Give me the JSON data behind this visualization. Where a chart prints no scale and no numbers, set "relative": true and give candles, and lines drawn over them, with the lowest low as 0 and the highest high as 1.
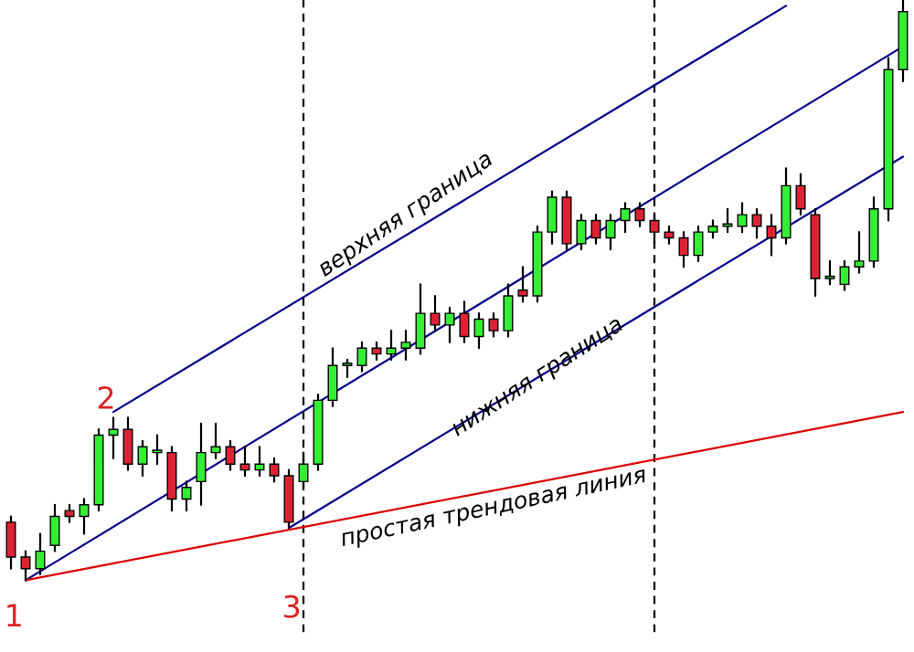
{
  "chart_data": {
    "type": "candlestick",
    "relative": true,
    "categories": [
      null,
      null,
      null,
      null,
      null,
      null,
      null,
      null,
      null,
      null,
      null,
      null,
      null,
      null,
      null,
      null,
      null,
      null,
      null,
      null,
      null,
      null,
      null,
      null,
      null,
      null,
      null,
      null,
      null,
      null,
      null,
      null,
      null,
      null,
      null,
      null,
      null,
      null,
      null,
      null,
      null,
      null,
      null,
      null,
      null,
      null,
      null,
      null,
      null,
      null,
      null,
      null,
      null,
      null,
      null,
      null,
      null,
      null,
      null,
      null,
      null,
      null
    ],
    "ohlc": [
      [
        0.1,
        0.11,
        0.02,
        0.04
      ],
      [
        0.04,
        0.05,
        0.0,
        0.02
      ],
      [
        0.02,
        0.08,
        0.01,
        0.05
      ],
      [
        0.06,
        0.13,
        0.05,
        0.11
      ],
      [
        0.12,
        0.13,
        0.1,
        0.11
      ],
      [
        0.11,
        0.14,
        0.08,
        0.13
      ],
      [
        0.13,
        0.26,
        0.12,
        0.25
      ],
      [
        0.25,
        0.28,
        0.21,
        0.26
      ],
      [
        0.26,
        0.28,
        0.19,
        0.2
      ],
      [
        0.2,
        0.24,
        0.18,
        0.23
      ],
      [
        0.22,
        0.25,
        0.2,
        0.22
      ],
      [
        0.22,
        0.23,
        0.12,
        0.14
      ],
      [
        0.14,
        0.17,
        0.12,
        0.16
      ],
      [
        0.17,
        0.27,
        0.13,
        0.22
      ],
      [
        0.22,
        0.27,
        0.21,
        0.23
      ],
      [
        0.23,
        0.24,
        0.19,
        0.2
      ],
      [
        0.2,
        0.23,
        0.18,
        0.19
      ],
      [
        0.19,
        0.23,
        0.18,
        0.2
      ],
      [
        0.2,
        0.21,
        0.17,
        0.18
      ],
      [
        0.18,
        0.19,
        0.09,
        0.1
      ],
      [
        0.17,
        0.22,
        0.16,
        0.2
      ],
      [
        0.2,
        0.32,
        0.19,
        0.31
      ],
      [
        0.31,
        0.4,
        0.3,
        0.37
      ],
      [
        0.37,
        0.38,
        0.35,
        0.37
      ],
      [
        0.37,
        0.41,
        0.36,
        0.4
      ],
      [
        0.4,
        0.41,
        0.38,
        0.39
      ],
      [
        0.39,
        0.43,
        0.38,
        0.4
      ],
      [
        0.4,
        0.43,
        0.38,
        0.41
      ],
      [
        0.4,
        0.51,
        0.39,
        0.46
      ],
      [
        0.46,
        0.49,
        0.43,
        0.44
      ],
      [
        0.44,
        0.47,
        0.41,
        0.46
      ],
      [
        0.46,
        0.48,
        0.41,
        0.42
      ],
      [
        0.42,
        0.46,
        0.4,
        0.45
      ],
      [
        0.45,
        0.46,
        0.42,
        0.43
      ],
      [
        0.43,
        0.51,
        0.42,
        0.49
      ],
      [
        0.5,
        0.54,
        0.48,
        0.49
      ],
      [
        0.49,
        0.61,
        0.48,
        0.6
      ],
      [
        0.6,
        0.67,
        0.58,
        0.66
      ],
      [
        0.66,
        0.67,
        0.57,
        0.58
      ],
      [
        0.58,
        0.63,
        0.57,
        0.62
      ],
      [
        0.62,
        0.63,
        0.58,
        0.59
      ],
      [
        0.59,
        0.63,
        0.57,
        0.62
      ],
      [
        0.62,
        0.65,
        0.6,
        0.64
      ],
      [
        0.64,
        0.65,
        0.61,
        0.62
      ],
      [
        0.62,
        0.63,
        0.58,
        0.6
      ],
      [
        0.6,
        0.61,
        0.58,
        0.59
      ],
      [
        0.59,
        0.6,
        0.54,
        0.56
      ],
      [
        0.56,
        0.61,
        0.55,
        0.6
      ],
      [
        0.6,
        0.62,
        0.59,
        0.61
      ],
      [
        0.61,
        0.64,
        0.6,
        0.61
      ],
      [
        0.61,
        0.65,
        0.6,
        0.63
      ],
      [
        0.63,
        0.64,
        0.59,
        0.61
      ],
      [
        0.61,
        0.63,
        0.56,
        0.59
      ],
      [
        0.59,
        0.71,
        0.58,
        0.68
      ],
      [
        0.68,
        0.7,
        0.63,
        0.64
      ],
      [
        0.63,
        0.64,
        0.49,
        0.52
      ],
      [
        0.52,
        0.55,
        0.51,
        0.52
      ],
      [
        0.51,
        0.55,
        0.5,
        0.54
      ],
      [
        0.54,
        0.6,
        0.53,
        0.55
      ],
      [
        0.55,
        0.66,
        0.54,
        0.64
      ],
      [
        0.64,
        0.9,
        0.62,
        0.88
      ],
      [
        0.88,
        1.0,
        0.86,
        0.98
      ]
    ],
    "series": [
      {
        "type": "line",
        "values": [
          null,
          null,
          null,
          null,
          null,
          null,
          null,
          0.29,
          null,
          null,
          null,
          null,
          null,
          null,
          null,
          null,
          null,
          null,
          null,
          null,
          null,
          null,
          null,
          null,
          null,
          null,
          null,
          null,
          null,
          null,
          null,
          null,
          null,
          null,
          null,
          null,
          null,
          null,
          null,
          null,
          null,
          null,
          null,
          null,
          null,
          null,
          null,
          null,
          null,
          null,
          null,
          null,
          null,
          0.99,
          null,
          null,
          null,
          null,
          null,
          null,
          null,
          null
        ],
        "color": "#00008b"
      },
      {
        "type": "line",
        "values": [
          null,
          0.0,
          null,
          null,
          null,
          null,
          null,
          null,
          null,
          null,
          null,
          null,
          null,
          null,
          null,
          null,
          null,
          null,
          null,
          null,
          null,
          null,
          null,
          null,
          null,
          null,
          null,
          null,
          null,
          null,
          null,
          null,
          null,
          null,
          null,
          null,
          null,
          null,
          null,
          null,
          null,
          null,
          null,
          null,
          null,
          null,
          null,
          null,
          null,
          null,
          null,
          null,
          null,
          null,
          null,
          null,
          null,
          null,
          null,
          null,
          null,
          0.92
        ],
        "color": "#00008b"
      },
      {
        "type": "line",
        "values": [
          null,
          null,
          null,
          null,
          null,
          null,
          null,
          null,
          null,
          null,
          null,
          null,
          null,
          null,
          null,
          null,
          null,
          null,
          null,
          0.09,
          null,
          null,
          null,
          null,
          null,
          null,
          null,
          null,
          null,
          null,
          null,
          null,
          null,
          null,
          null,
          null,
          null,
          null,
          null,
          null,
          null,
          null,
          null,
          null,
          null,
          null,
          null,
          null,
          null,
          null,
          null,
          null,
          null,
          null,
          null,
          null,
          null,
          null,
          null,
          null,
          null,
          0.73
        ],
        "color": "#00008b"
      },
      {
        "type": "line",
        "values": [
          null,
          0.0,
          null,
          null,
          null,
          null,
          null,
          null,
          null,
          null,
          null,
          null,
          null,
          null,
          null,
          null,
          null,
          null,
          null,
          null,
          null,
          null,
          null,
          null,
          null,
          null,
          null,
          null,
          null,
          null,
          null,
          null,
          null,
          null,
          null,
          null,
          null,
          null,
          null,
          null,
          null,
          null,
          null,
          null,
          null,
          null,
          null,
          null,
          null,
          null,
          null,
          null,
          null,
          null,
          null,
          null,
          null,
          null,
          null,
          null,
          null,
          0.29
        ],
        "color": "#dd0000"
      }
    ],
    "annotations": [
      "1",
      "2",
      "3",
      "верхняя граница",
      "нижняя граница",
      "простая трендовая линия"
    ],
    "colors": [
      "#dd2233",
      "#dd2233",
      "#33ee33",
      "#33ee33",
      "#dd2233",
      "#33ee33",
      "#33ee33",
      "#33ee33",
      "#dd2233",
      "#33ee33",
      "#33ee33",
      "#dd2233",
      "#33ee33",
      "#33ee33",
      "#33ee33",
      "#dd2233",
      "#dd2233",
      "#33ee33",
      "#dd2233",
      "#dd2233",
      "#33ee33",
      "#33ee33",
      "#33ee33",
      "#33ee33",
      "#33ee33",
      "#dd2233",
      "#33ee33",
      "#33ee33",
      "#33ee33",
      "#dd2233",
      "#33ee33",
      "#dd2233",
      "#33ee33",
      "#dd2233",
      "#33ee33",
      "#dd2233",
      "#33ee33",
      "#33ee33",
      "#dd2233",
      "#33ee33",
      "#dd2233",
      "#33ee33",
      "#33ee33",
      "#dd2233",
      "#dd2233",
      "#dd2233",
      "#dd2233",
      "#33ee33",
      "#33ee33",
      "#33ee33",
      "#33ee33",
      "#dd2233",
      "#dd2233",
      "#33ee33",
      "#dd2233",
      "#dd2233",
      "#33ee33",
      "#33ee33",
      "#33ee33",
      "#33ee33",
      "#33ee33",
      "#33ee33"
    ]
  }
}
